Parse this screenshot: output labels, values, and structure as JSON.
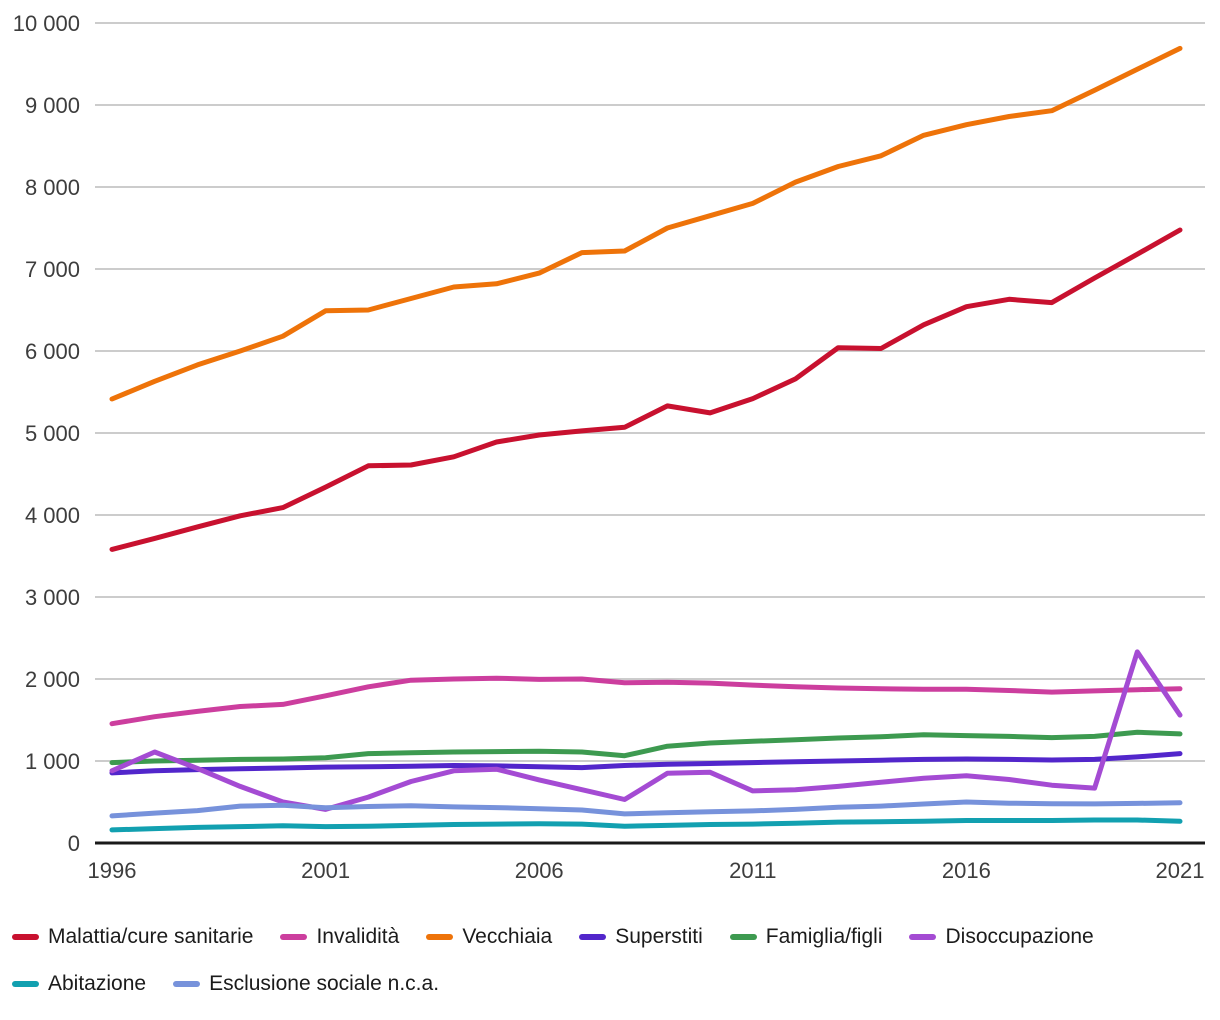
{
  "chart": {
    "background": "#ffffff",
    "grid_color": "#cccccc",
    "axis_color": "#1a1a1a",
    "tick_label_color": "#3d3d3d",
    "legend_label_color": "#1b1b1b"
  },
  "chart_data": {
    "type": "line",
    "title": "",
    "x": [
      1996,
      1997,
      1998,
      1999,
      2000,
      2001,
      2002,
      2003,
      2004,
      2005,
      2006,
      2007,
      2008,
      2009,
      2010,
      2011,
      2012,
      2013,
      2014,
      2015,
      2016,
      2017,
      2018,
      2019,
      2020,
      2021
    ],
    "x_tick_labels": [
      "1996",
      "2001",
      "2006",
      "2011",
      "2016",
      "2021"
    ],
    "ylim": [
      0,
      10000
    ],
    "y_tick_step": 1000,
    "y_tick_labels": [
      "0",
      "1 000",
      "2 000",
      "3 000",
      "4 000",
      "5 000",
      "6 000",
      "7 000",
      "8 000",
      "9 000",
      "10 000"
    ],
    "grid": "horizontal",
    "legend_position": "bottom",
    "series": [
      {
        "name": "Malattia/cure sanitarie",
        "slug": "malattia-cure-sanitarie",
        "color": "#c8112f",
        "values": [
          3580,
          3715,
          3855,
          3990,
          4090,
          4340,
          4600,
          4610,
          4710,
          4890,
          4975,
          5025,
          5070,
          5330,
          5245,
          5420,
          5660,
          6040,
          6030,
          6320,
          6540,
          6630,
          6590,
          6890,
          7180,
          7475
        ]
      },
      {
        "name": "Invalidità",
        "slug": "invalidita",
        "color": "#cc3e9e",
        "values": [
          1455,
          1540,
          1605,
          1665,
          1690,
          1795,
          1905,
          1985,
          2000,
          2010,
          1995,
          2000,
          1955,
          1960,
          1950,
          1925,
          1905,
          1890,
          1880,
          1875,
          1875,
          1860,
          1840,
          1855,
          1870,
          1880
        ]
      },
      {
        "name": "Vecchiaia",
        "slug": "vecchiaia",
        "color": "#ee7309",
        "values": [
          5415,
          5630,
          5830,
          6000,
          6180,
          6490,
          6500,
          6640,
          6780,
          6820,
          6950,
          7200,
          7220,
          7500,
          7650,
          7800,
          8060,
          8250,
          8380,
          8630,
          8760,
          8860,
          8930,
          9180,
          9435,
          9690
        ]
      },
      {
        "name": "Superstiti",
        "slug": "superstiti",
        "color": "#5226cb",
        "values": [
          855,
          880,
          895,
          905,
          915,
          925,
          930,
          935,
          945,
          940,
          930,
          920,
          945,
          960,
          970,
          980,
          990,
          1000,
          1010,
          1020,
          1025,
          1020,
          1012,
          1020,
          1050,
          1090
        ]
      },
      {
        "name": "Famiglia/figli",
        "slug": "famiglia-figli",
        "color": "#3d9a50",
        "values": [
          980,
          1000,
          1010,
          1020,
          1025,
          1040,
          1090,
          1100,
          1110,
          1115,
          1120,
          1110,
          1065,
          1180,
          1220,
          1240,
          1260,
          1280,
          1295,
          1320,
          1310,
          1300,
          1285,
          1300,
          1350,
          1330
        ]
      },
      {
        "name": "Disoccupazione",
        "slug": "disoccupazione",
        "color": "#a44bd3",
        "values": [
          880,
          1110,
          910,
          690,
          500,
          410,
          560,
          750,
          880,
          900,
          770,
          650,
          530,
          850,
          862,
          635,
          650,
          690,
          740,
          790,
          820,
          775,
          705,
          670,
          2330,
          1560
        ]
      },
      {
        "name": "Abitazione",
        "slug": "abitazione",
        "color": "#12a0b0",
        "values": [
          160,
          175,
          190,
          200,
          210,
          200,
          205,
          215,
          225,
          230,
          235,
          230,
          205,
          215,
          225,
          230,
          240,
          255,
          260,
          265,
          275,
          275,
          275,
          280,
          280,
          265
        ]
      },
      {
        "name": "Esclusione sociale n.c.a.",
        "slug": "esclusione-sociale-nca",
        "color": "#7792db",
        "values": [
          330,
          365,
          395,
          450,
          460,
          430,
          445,
          455,
          440,
          432,
          418,
          402,
          355,
          370,
          382,
          392,
          410,
          435,
          450,
          475,
          500,
          485,
          478,
          477,
          483,
          490
        ]
      }
    ]
  }
}
